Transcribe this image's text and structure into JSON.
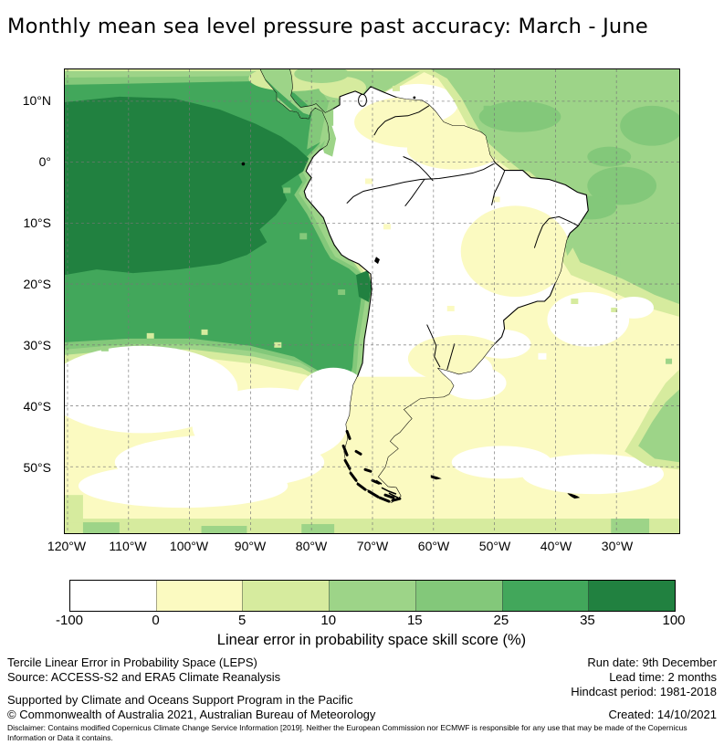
{
  "title": "Monthly mean sea level pressure past accuracy: March - June",
  "map": {
    "y_ticks": [
      "10°N",
      "0°",
      "10°S",
      "20°S",
      "30°S",
      "40°S",
      "50°S"
    ],
    "x_ticks": [
      "120°W",
      "110°W",
      "100°W",
      "90°W",
      "80°W",
      "70°W",
      "60°W",
      "50°W",
      "40°W",
      "30°W"
    ]
  },
  "colorbar": {
    "tick_labels": [
      "-100",
      "0",
      "5",
      "10",
      "15",
      "25",
      "35",
      "100"
    ],
    "segment_colors": [
      "#ffffff",
      "#fbfac1",
      "#d6eb9e",
      "#9dd488",
      "#83c87a",
      "#42a75b",
      "#218140"
    ],
    "label": "Linear error in probability space skill score (%)"
  },
  "footer": {
    "leps": "Tercile Linear Error in Probability Space (LEPS)",
    "source": "Source: ACCESS-S2 and ERA5 Climate Reanalysis",
    "right_lines": [
      "Run date: 9th December",
      "Lead time: 2 months",
      "Hindcast period: 1981-2018"
    ],
    "supported": "Supported by Climate and Oceans Support Program in the Pacific",
    "copyright": "© Commonwealth of Australia 2021, Australian Bureau of Meteorology",
    "created": "Created: 14/10/2021",
    "disclaimer": "Disclaimer: Contains modified Copernicus Climate Change Service Information [2019]. Neither the European Commission nor ECMWF is responsible for any use that may be made of the Copernicus Information or Data it contains."
  },
  "chart_data": {
    "type": "heatmap",
    "title": "Monthly mean sea level pressure past accuracy: March - June",
    "variable": "Linear error in probability space skill score (%)",
    "x_tick_labels": [
      "120°W",
      "110°W",
      "100°W",
      "90°W",
      "80°W",
      "70°W",
      "60°W",
      "50°W",
      "40°W",
      "30°W"
    ],
    "y_tick_labels": [
      "10°N",
      "0°",
      "10°S",
      "20°S",
      "30°S",
      "40°S",
      "50°S"
    ],
    "extent": {
      "lon_west": "120°W",
      "lon_east": "20°W",
      "lat_north": "15°N",
      "lat_south": "60°S"
    },
    "scale_boundaries": [
      -100,
      0,
      5,
      10,
      15,
      25,
      35,
      100
    ],
    "scale_colors": [
      "#ffffff",
      "#fbfac1",
      "#d6eb9e",
      "#9dd488",
      "#83c87a",
      "#42a75b",
      "#218140"
    ],
    "legend_position": "bottom",
    "grid": "dashed graticule every 10 degrees",
    "regions": [
      {
        "area": "Eastern equatorial Pacific core (~115-95°W, 5°N-12°S)",
        "skill_pct": "35-100"
      },
      {
        "area": "Tropical SE Pacific surrounding core, to coast of Ecuador/Colombia",
        "skill_pct": "25-35"
      },
      {
        "area": "Chile coastal strip south to ~33°S",
        "skill_pct": "15-35"
      },
      {
        "area": "Small dark pocket on Chile coast ~20-23°S",
        "skill_pct": "35-100"
      },
      {
        "area": "Tropical North Atlantic NE of Brazil",
        "skill_pct": "10-15 with 15-25 patches"
      },
      {
        "area": "Caribbean / Venezuela offshore",
        "skill_pct": "-100-10 (white to pale)"
      },
      {
        "area": "South Pacific 28-50°S",
        "skill_pct": "-100-5 (white blotches in pale yellow)"
      },
      {
        "area": "South Atlantic off Argentina/Uruguay",
        "skill_pct": "-100-5"
      },
      {
        "area": "South America interior (Amazon, Andes, Brazil)",
        "skill_pct": "-100-5 (mostly white)"
      },
      {
        "area": "Patagonia / southern Argentina land",
        "skill_pct": "0-5"
      },
      {
        "area": "Southeast corner of domain (~25°W, 45-55°S)",
        "skill_pct": "5-15"
      }
    ]
  }
}
